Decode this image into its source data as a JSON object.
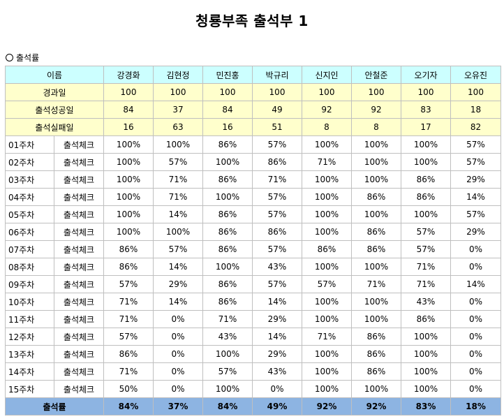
{
  "title": "청룡부족 출석부 1",
  "section_label": "출석률",
  "header": {
    "name_label": "이름",
    "members": [
      "강경화",
      "김현정",
      "민진홍",
      "박규리",
      "신지인",
      "안철준",
      "오기자",
      "오유진"
    ]
  },
  "summary_rows": [
    {
      "label": "경과일",
      "values": [
        "100",
        "100",
        "100",
        "100",
        "100",
        "100",
        "100",
        "100"
      ]
    },
    {
      "label": "출석성공일",
      "values": [
        "84",
        "37",
        "84",
        "49",
        "92",
        "92",
        "83",
        "18"
      ]
    },
    {
      "label": "출석실패일",
      "values": [
        "16",
        "63",
        "16",
        "51",
        "8",
        "8",
        "17",
        "82"
      ]
    }
  ],
  "weeks": [
    {
      "week": "01주차",
      "check": "출석체크",
      "values": [
        "100%",
        "100%",
        "86%",
        "57%",
        "100%",
        "100%",
        "100%",
        "57%"
      ]
    },
    {
      "week": "02주차",
      "check": "출석체크",
      "values": [
        "100%",
        "57%",
        "100%",
        "86%",
        "71%",
        "100%",
        "100%",
        "57%"
      ]
    },
    {
      "week": "03주차",
      "check": "출석체크",
      "values": [
        "100%",
        "71%",
        "86%",
        "71%",
        "100%",
        "100%",
        "86%",
        "29%"
      ]
    },
    {
      "week": "04주차",
      "check": "출석체크",
      "values": [
        "100%",
        "71%",
        "100%",
        "57%",
        "100%",
        "86%",
        "86%",
        "14%"
      ]
    },
    {
      "week": "05주차",
      "check": "출석체크",
      "values": [
        "100%",
        "14%",
        "86%",
        "57%",
        "100%",
        "100%",
        "100%",
        "57%"
      ]
    },
    {
      "week": "06주차",
      "check": "출석체크",
      "values": [
        "100%",
        "100%",
        "86%",
        "86%",
        "100%",
        "86%",
        "57%",
        "29%"
      ]
    },
    {
      "week": "07주차",
      "check": "출석체크",
      "values": [
        "86%",
        "57%",
        "86%",
        "57%",
        "86%",
        "86%",
        "57%",
        "0%"
      ]
    },
    {
      "week": "08주차",
      "check": "출석체크",
      "values": [
        "86%",
        "14%",
        "100%",
        "43%",
        "100%",
        "100%",
        "71%",
        "0%"
      ]
    },
    {
      "week": "09주차",
      "check": "출석체크",
      "values": [
        "57%",
        "29%",
        "86%",
        "57%",
        "57%",
        "71%",
        "71%",
        "14%"
      ]
    },
    {
      "week": "10주차",
      "check": "출석체크",
      "values": [
        "71%",
        "14%",
        "86%",
        "14%",
        "100%",
        "100%",
        "43%",
        "0%"
      ]
    },
    {
      "week": "11주차",
      "check": "출석체크",
      "values": [
        "71%",
        "0%",
        "71%",
        "29%",
        "100%",
        "100%",
        "86%",
        "0%"
      ]
    },
    {
      "week": "12주차",
      "check": "출석체크",
      "values": [
        "57%",
        "0%",
        "43%",
        "14%",
        "71%",
        "86%",
        "100%",
        "0%"
      ]
    },
    {
      "week": "13주차",
      "check": "출석체크",
      "values": [
        "86%",
        "0%",
        "100%",
        "29%",
        "100%",
        "86%",
        "100%",
        "0%"
      ]
    },
    {
      "week": "14주차",
      "check": "출석체크",
      "values": [
        "71%",
        "0%",
        "57%",
        "43%",
        "100%",
        "86%",
        "100%",
        "0%"
      ]
    },
    {
      "week": "15주차",
      "check": "출석체크",
      "values": [
        "50%",
        "0%",
        "100%",
        "0%",
        "100%",
        "100%",
        "100%",
        "0%"
      ]
    }
  ],
  "total": {
    "label": "출석률",
    "values": [
      "84%",
      "37%",
      "84%",
      "49%",
      "92%",
      "92%",
      "83%",
      "18%"
    ]
  },
  "colors": {
    "header_bg": "#ccffff",
    "summary_bg": "#ffffcc",
    "total_bg": "#8db4e2",
    "grid": "#bfbfbf"
  }
}
